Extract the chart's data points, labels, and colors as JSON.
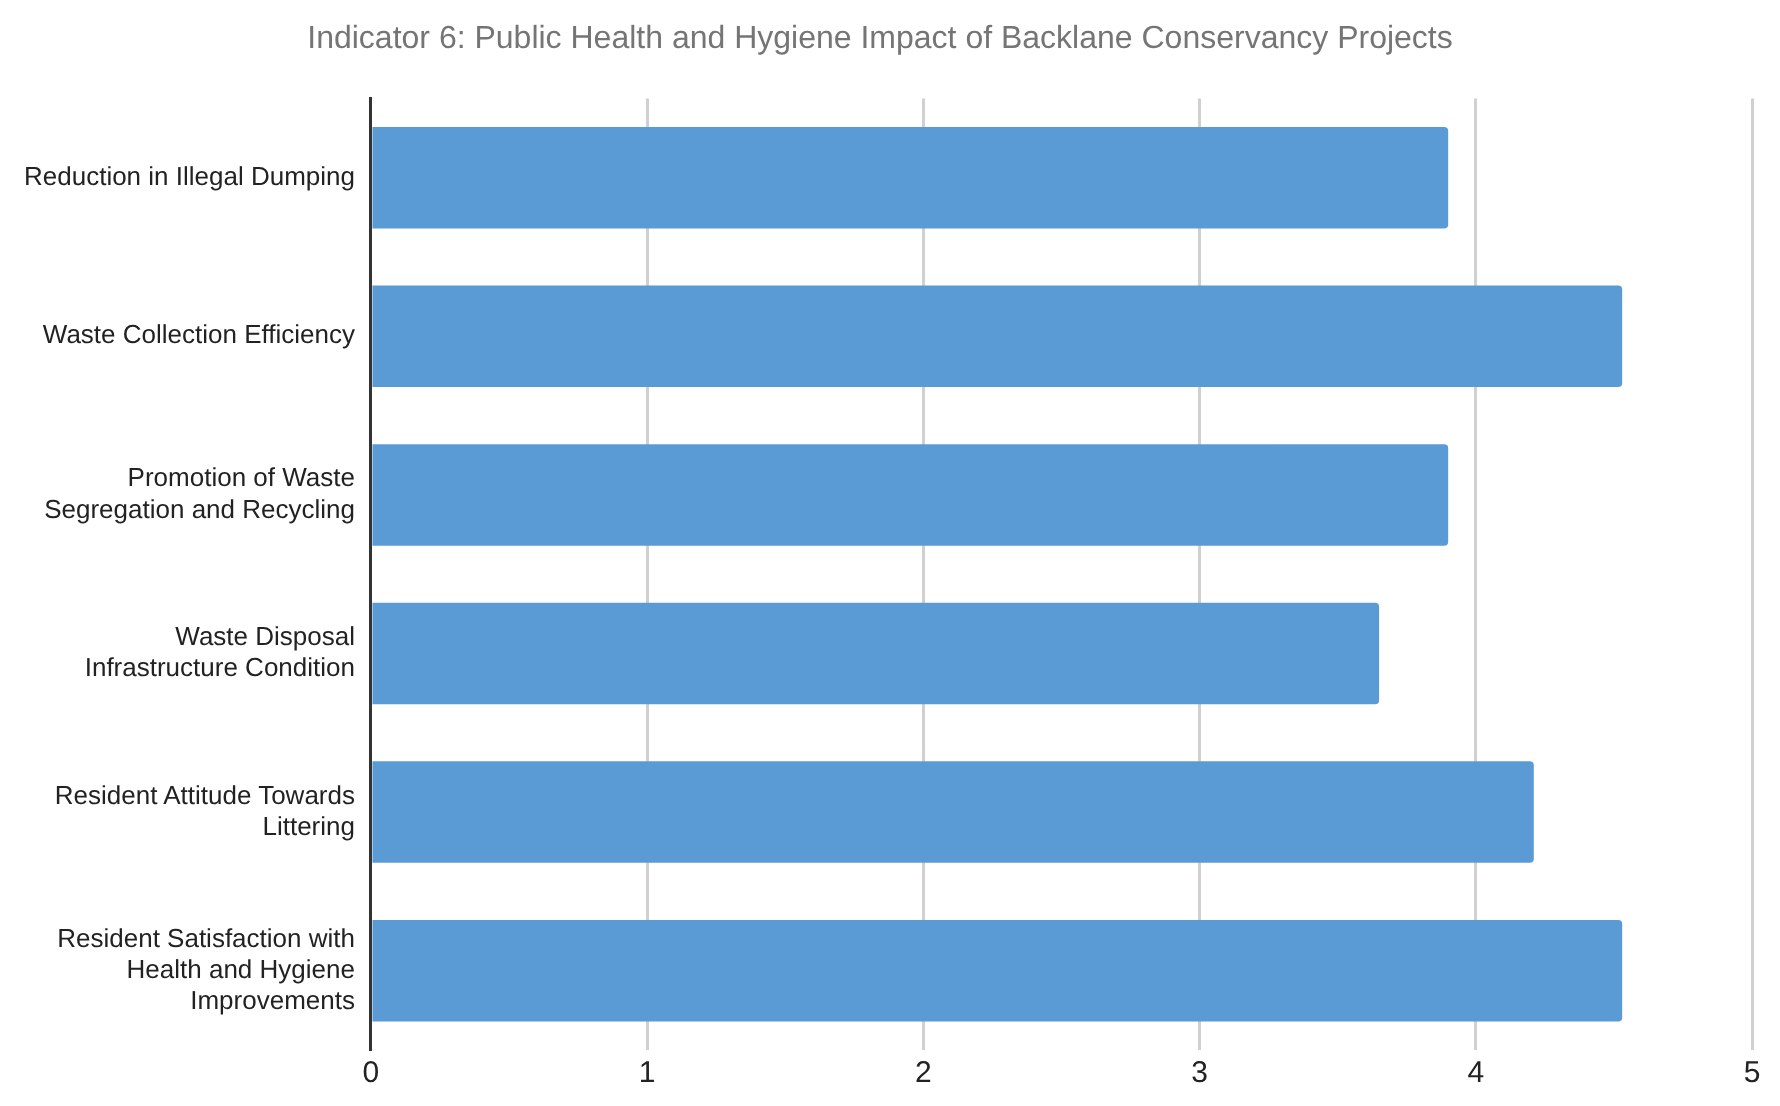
{
  "chart_data": {
    "type": "bar",
    "orientation": "horizontal",
    "title": "Indicator 6: Public Health and Hygiene Impact of Backlane Conservancy Projects",
    "categories": [
      "Reduction in Illegal Dumping",
      "Waste Collection Efficiency",
      "Promotion of Waste Segregation and Recycling",
      "Waste Disposal Infrastructure Condition",
      "Resident Attitude Towards Littering",
      "Resident Satisfaction with Health and Hygiene Improvements"
    ],
    "values": [
      3.9,
      4.53,
      3.9,
      3.65,
      4.21,
      4.53
    ],
    "color": "#5b9bd5",
    "xlim": [
      0,
      5
    ],
    "xticks": [
      0,
      1,
      2,
      3,
      4,
      5
    ],
    "grid": "x",
    "legend": false
  }
}
